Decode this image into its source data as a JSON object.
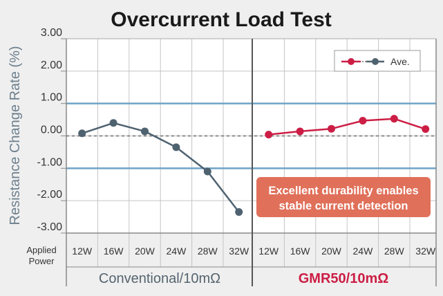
{
  "chart_data": {
    "type": "line",
    "title": "Overcurrent Load Test",
    "ylabel": "Resistance Change Rate (%)",
    "ylim": [
      -3,
      3
    ],
    "yticks": [
      "3.00",
      "2.00",
      "1.00",
      "0.00",
      "-1.00",
      "-2.00",
      "-3.00"
    ],
    "x_axis_title": [
      "Applied",
      "Power"
    ],
    "categories": [
      "12W",
      "16W",
      "20W",
      "24W",
      "28W",
      "32W"
    ],
    "reference_lines": [
      1.0,
      -1.0
    ],
    "zero_line": 0.0,
    "grid": true,
    "legend": {
      "label": "Ave.",
      "placement": "top-right"
    },
    "panels": [
      {
        "name": "Conventional/10mΩ",
        "color": "#4f6270",
        "values": [
          0.08,
          0.4,
          0.14,
          -0.35,
          -1.1,
          -2.35
        ]
      },
      {
        "name": "GMR50/10mΩ",
        "color": "#cc1e45",
        "values": [
          0.04,
          0.14,
          0.22,
          0.47,
          0.53,
          0.21
        ]
      }
    ],
    "annotation": [
      "Excellent durability enables",
      "stable current detection"
    ],
    "annotation_color": "#e0705a"
  }
}
